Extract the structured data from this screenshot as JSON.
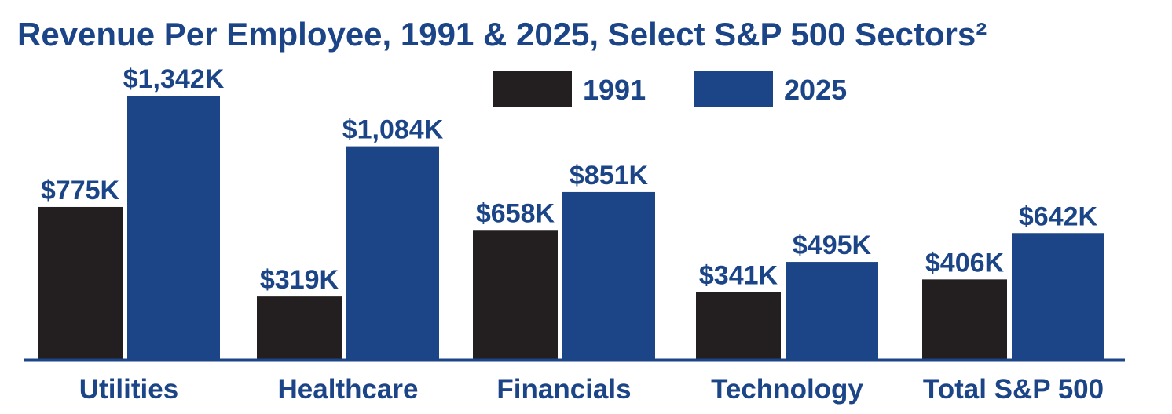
{
  "chart_data": {
    "type": "bar",
    "title": "Revenue Per Employee, 1991 & 2025, Select S&P 500 Sectors²",
    "xlabel": "",
    "ylabel": "",
    "ylim": [
      0,
      1342
    ],
    "grid": false,
    "legend_position": "top",
    "categories": [
      "Utilities",
      "Healthcare",
      "Financials",
      "Technology",
      "Total S&P 500"
    ],
    "series": [
      {
        "name": "1991",
        "color": "#231f20",
        "values": [
          775,
          319,
          658,
          341,
          406
        ],
        "labels": [
          "$775K",
          "$319K",
          "$658K",
          "$341K",
          "$406K"
        ]
      },
      {
        "name": "2025",
        "color": "#1c4587",
        "values": [
          1342,
          1084,
          851,
          495,
          642
        ],
        "labels": [
          "$1,342K",
          "$1,084K",
          "$851K",
          "$495K",
          "$642K"
        ]
      }
    ],
    "colors": {
      "text": "#1c4587",
      "axis": "#1c4587"
    }
  }
}
